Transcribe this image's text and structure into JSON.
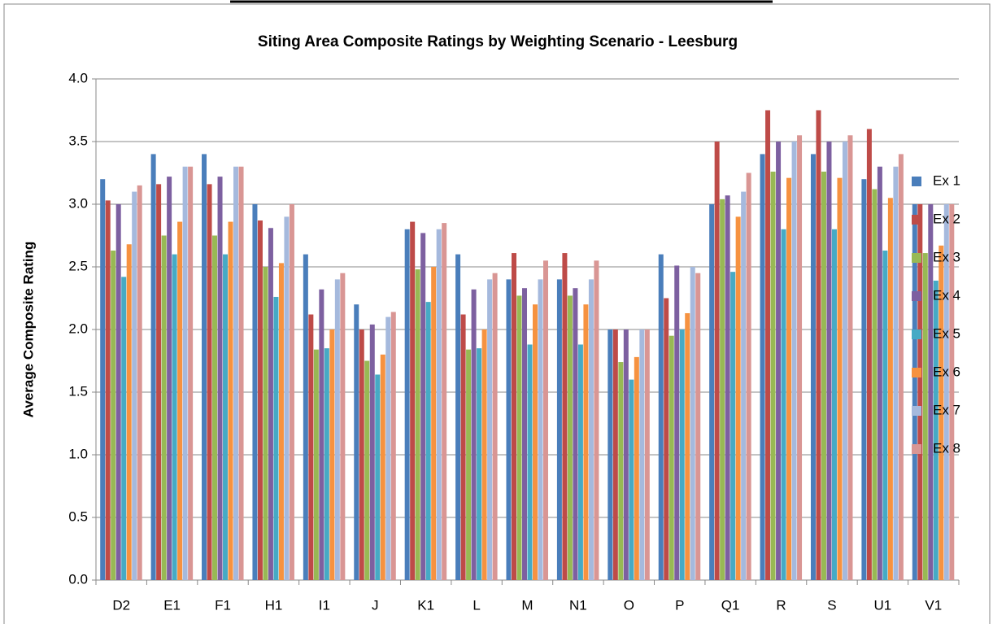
{
  "chart_data": {
    "type": "bar",
    "title": "Siting Area Composite Ratings by Weighting Scenario - Leesburg",
    "y_label": "Average Composite Rating",
    "categories": [
      "D2",
      "E1",
      "F1",
      "H1",
      "I1",
      "J",
      "K1",
      "L",
      "M",
      "N1",
      "O",
      "P",
      "Q1",
      "R",
      "S",
      "U1",
      "V1"
    ],
    "series": [
      {
        "name": "Ex 1",
        "color": "#4a7ebb",
        "values": [
          3.2,
          3.4,
          3.4,
          3.0,
          2.6,
          2.2,
          2.8,
          2.6,
          2.4,
          2.4,
          2.0,
          2.6,
          3.0,
          3.4,
          3.4,
          3.2,
          3.0
        ]
      },
      {
        "name": "Ex 2",
        "color": "#be4b48",
        "values": [
          3.03,
          3.16,
          3.16,
          2.87,
          2.12,
          2.0,
          2.86,
          2.12,
          2.61,
          2.61,
          2.0,
          2.25,
          3.5,
          3.75,
          3.75,
          3.6,
          3.0
        ]
      },
      {
        "name": "Ex 3",
        "color": "#98b954",
        "values": [
          2.63,
          2.75,
          2.75,
          2.5,
          1.84,
          1.75,
          2.48,
          1.84,
          2.27,
          2.27,
          1.74,
          1.95,
          3.04,
          3.26,
          3.26,
          3.12,
          2.61
        ]
      },
      {
        "name": "Ex 4",
        "color": "#7d60a0",
        "values": [
          3.0,
          3.22,
          3.22,
          2.81,
          2.32,
          2.04,
          2.77,
          2.32,
          2.33,
          2.33,
          2.0,
          2.51,
          3.07,
          3.5,
          3.5,
          3.3,
          3.0
        ]
      },
      {
        "name": "Ex 5",
        "color": "#46aac5",
        "values": [
          2.42,
          2.6,
          2.6,
          2.26,
          1.85,
          1.64,
          2.22,
          1.85,
          1.88,
          1.88,
          1.6,
          2.0,
          2.46,
          2.8,
          2.8,
          2.63,
          2.39
        ]
      },
      {
        "name": "Ex 6",
        "color": "#f69240",
        "values": [
          2.68,
          2.86,
          2.86,
          2.53,
          2.0,
          1.8,
          2.5,
          2.0,
          2.2,
          2.2,
          1.78,
          2.13,
          2.9,
          3.21,
          3.21,
          3.05,
          2.67
        ]
      },
      {
        "name": "Ex 7",
        "color": "#a5b9dd",
        "values": [
          3.1,
          3.3,
          3.3,
          2.9,
          2.4,
          2.1,
          2.8,
          2.4,
          2.4,
          2.4,
          2.0,
          2.5,
          3.1,
          3.5,
          3.5,
          3.3,
          3.0
        ]
      },
      {
        "name": "Ex 8",
        "color": "#d99694",
        "values": [
          3.15,
          3.3,
          3.3,
          3.0,
          2.45,
          2.14,
          2.85,
          2.45,
          2.55,
          2.55,
          2.0,
          2.45,
          3.25,
          3.55,
          3.55,
          3.4,
          3.0
        ]
      }
    ],
    "ylim": [
      0,
      4
    ],
    "yticks": [
      {
        "value": 0,
        "label": "0.0"
      },
      0.5,
      {
        "value": 1,
        "label": "1.0"
      },
      1.5,
      {
        "value": 2,
        "label": "2.0"
      },
      2.5,
      {
        "value": 3,
        "label": "3.0"
      },
      3.5,
      {
        "value": 4,
        "label": "4.0"
      }
    ],
    "grid": true,
    "legend": "right"
  }
}
